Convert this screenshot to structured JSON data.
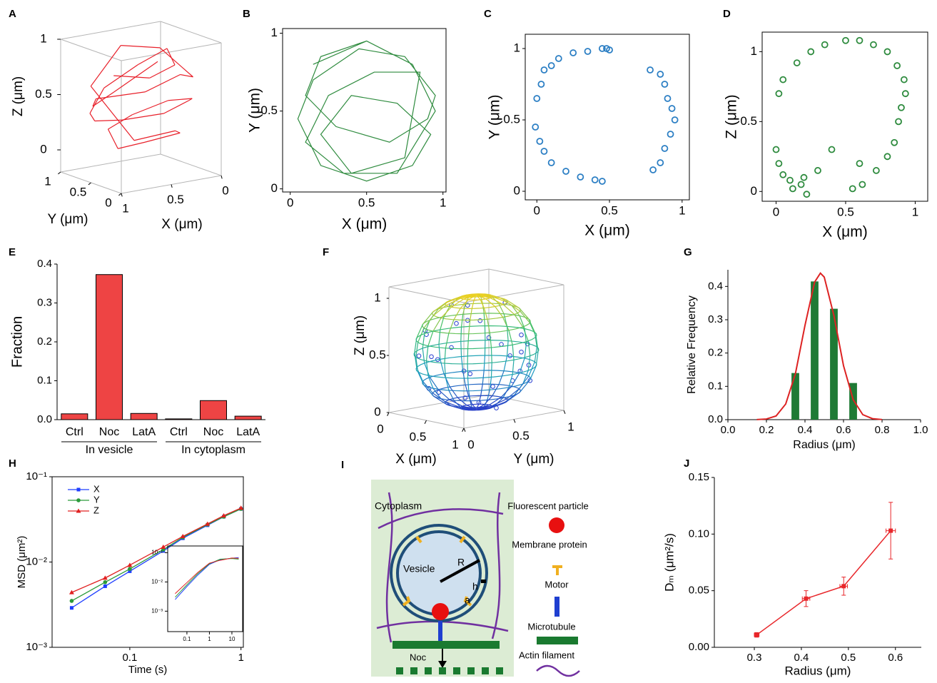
{
  "chart_data": [
    {
      "type": "line3d",
      "label": "A",
      "xlabel": "X (μm)",
      "ylabel": "Y (μm)",
      "zlabel": "Z (μm)",
      "color": "#e8202a",
      "xlim": [
        0,
        1
      ],
      "ylim": [
        0,
        1
      ],
      "zlim": [
        -0.2,
        1
      ],
      "xticks": [
        0,
        0.5,
        1
      ],
      "yticks": [
        0,
        0.5,
        1
      ],
      "zticks": [
        0,
        0.5,
        1
      ],
      "x": [
        0.5,
        0.2,
        0.1,
        0.3,
        0.65,
        0.9,
        0.95,
        0.75,
        0.45,
        0.15,
        0.05,
        0.2,
        0.5,
        0.8,
        0.92,
        0.7,
        0.4,
        0.2,
        0.4,
        0.75,
        0.85,
        0.55,
        0.25,
        0.1,
        0.35,
        0.7,
        0.95,
        0.8,
        0.5,
        0.15
      ],
      "y": [
        0.95,
        0.85,
        0.6,
        0.4,
        0.3,
        0.45,
        0.6,
        0.85,
        0.9,
        0.7,
        0.45,
        0.15,
        0.05,
        0.15,
        0.35,
        0.55,
        0.6,
        0.35,
        0.1,
        0.2,
        0.75,
        0.75,
        0.6,
        0.3,
        0.1,
        0.1,
        0.5,
        0.8,
        0.95,
        0.8
      ],
      "z": [
        0.6,
        0.55,
        0.7,
        0.92,
        0.85,
        0.65,
        0.4,
        0.25,
        0.2,
        0.25,
        0.4,
        0.5,
        0.55,
        0.45,
        0.3,
        0.05,
        0.05,
        0.15,
        0.25,
        0.2,
        0.6,
        0.92,
        0.88,
        0.65,
        0.75,
        0.65,
        0.55,
        0.4,
        0.45,
        0.7
      ]
    },
    {
      "type": "line",
      "label": "B",
      "xlabel": "X (μm)",
      "ylabel": "Y (μm)",
      "color": "#2e8b3e",
      "xlim": [
        -0.05,
        1.02
      ],
      "ylim": [
        -0.02,
        1.03
      ],
      "xticks": [
        0,
        0.5,
        1
      ],
      "yticks": [
        0,
        0.5,
        1
      ],
      "x": [
        0.5,
        0.2,
        0.1,
        0.3,
        0.65,
        0.9,
        0.95,
        0.75,
        0.45,
        0.15,
        0.05,
        0.2,
        0.5,
        0.8,
        0.92,
        0.7,
        0.4,
        0.2,
        0.4,
        0.75,
        0.85,
        0.55,
        0.25,
        0.1,
        0.35,
        0.7,
        0.95,
        0.8,
        0.5,
        0.15
      ],
      "values": [
        0.95,
        0.85,
        0.6,
        0.4,
        0.3,
        0.45,
        0.6,
        0.85,
        0.9,
        0.7,
        0.45,
        0.15,
        0.05,
        0.15,
        0.35,
        0.55,
        0.6,
        0.35,
        0.1,
        0.2,
        0.75,
        0.75,
        0.6,
        0.3,
        0.1,
        0.1,
        0.5,
        0.8,
        0.95,
        0.8
      ]
    },
    {
      "type": "scatter",
      "label": "C",
      "xlabel": "X (μm)",
      "ylabel": "Y (μm)",
      "color": "#2c7fc4",
      "xlim": [
        -0.08,
        1.05
      ],
      "ylim": [
        -0.06,
        1.1
      ],
      "xticks": [
        0,
        0.5,
        1
      ],
      "yticks": [
        0,
        0.5,
        1
      ],
      "x": [
        0.05,
        0.1,
        0.15,
        0.25,
        0.35,
        0.45,
        0.48,
        0.5,
        0.0,
        0.03,
        -0.01,
        0.02,
        0.05,
        0.1,
        0.2,
        0.3,
        0.4,
        0.45,
        0.78,
        0.85,
        0.88,
        0.9,
        0.93,
        0.95,
        0.92,
        0.88,
        0.85,
        0.8
      ],
      "values": [
        0.85,
        0.88,
        0.93,
        0.97,
        0.98,
        1.0,
        1.0,
        0.99,
        0.65,
        0.75,
        0.45,
        0.35,
        0.28,
        0.2,
        0.14,
        0.1,
        0.08,
        0.07,
        0.85,
        0.82,
        0.75,
        0.65,
        0.58,
        0.5,
        0.4,
        0.3,
        0.2,
        0.15
      ]
    },
    {
      "type": "scatter",
      "label": "D",
      "xlabel": "X (μm)",
      "ylabel": "Z (μm)",
      "color": "#2e8b3e",
      "xlim": [
        -0.1,
        1.09
      ],
      "ylim": [
        -0.07,
        1.14
      ],
      "xticks": [
        0,
        0.5,
        1
      ],
      "yticks": [
        0,
        0.5,
        1
      ],
      "x": [
        0.02,
        0.05,
        0.15,
        0.25,
        0.35,
        0.5,
        0.6,
        0.7,
        0.8,
        0.87,
        0.92,
        0.93,
        0.9,
        0.88,
        0.85,
        0.8,
        0.72,
        0.62,
        0.55,
        0.6,
        0.0,
        0.02,
        0.05,
        0.1,
        0.12,
        0.18,
        0.2,
        0.22,
        0.3,
        0.4
      ],
      "values": [
        0.7,
        0.8,
        0.92,
        1.0,
        1.05,
        1.08,
        1.08,
        1.05,
        1.0,
        0.9,
        0.8,
        0.7,
        0.6,
        0.5,
        0.35,
        0.25,
        0.15,
        0.05,
        0.02,
        0.2,
        0.3,
        0.2,
        0.12,
        0.08,
        0.02,
        0.05,
        0.1,
        -0.02,
        0.15,
        0.3
      ]
    },
    {
      "type": "bar",
      "label": "E",
      "ylabel": "Fraction",
      "color": "#ee4444",
      "categories": [
        "Ctrl",
        "Noc",
        "LatA",
        "Ctrl",
        "Noc",
        "LatA"
      ],
      "groups": [
        "In vesicle",
        "In cytoplasm"
      ],
      "values": [
        0.015,
        0.373,
        0.016,
        0.002,
        0.049,
        0.009
      ],
      "ylim": [
        0,
        0.4
      ],
      "yticks": [
        {
          "value": 0,
          "label": "0.0"
        },
        0.1,
        0.2,
        0.3,
        0.4
      ]
    },
    {
      "type": "scatter3d",
      "label": "F",
      "xlabel": "X (μm)",
      "ylabel": "Y (μm)",
      "zlabel": "Z (μm)",
      "color": "#2a3fd0",
      "xlim": [
        0,
        1
      ],
      "ylim": [
        0,
        1
      ],
      "zlim": [
        0,
        1.1
      ],
      "xticks": [
        0,
        0.5,
        1
      ],
      "yticks": [
        0,
        0.5,
        1
      ],
      "zticks": [
        0,
        0.5,
        1
      ],
      "sphere": {
        "center": [
          0.5,
          0.5,
          0.52
        ],
        "radius": 0.5
      },
      "colormap": [
        "#2b3cc8",
        "#1fa0c0",
        "#3cc070",
        "#f0d020"
      ],
      "x": [
        0.5,
        0.2,
        0.1,
        0.3,
        0.65,
        0.9,
        0.95,
        0.75,
        0.45,
        0.15,
        0.05,
        0.2,
        0.5,
        0.8,
        0.92,
        0.7,
        0.4,
        0.2,
        0.4,
        0.75,
        0.85,
        0.55,
        0.25,
        0.1,
        0.35,
        0.7,
        0.95,
        0.8,
        0.5,
        0.15
      ],
      "y": [
        0.95,
        0.85,
        0.6,
        0.4,
        0.3,
        0.45,
        0.6,
        0.85,
        0.9,
        0.7,
        0.45,
        0.15,
        0.05,
        0.15,
        0.35,
        0.55,
        0.6,
        0.35,
        0.1,
        0.2,
        0.75,
        0.75,
        0.6,
        0.3,
        0.1,
        0.1,
        0.5,
        0.8,
        0.95,
        0.8
      ],
      "z": [
        0.6,
        0.55,
        0.7,
        0.92,
        0.85,
        0.65,
        0.4,
        0.25,
        0.2,
        0.25,
        0.4,
        0.5,
        0.55,
        0.45,
        0.3,
        0.05,
        0.05,
        0.15,
        0.25,
        0.2,
        0.6,
        0.92,
        0.88,
        0.65,
        0.75,
        0.65,
        0.55,
        0.4,
        0.45,
        0.7
      ]
    },
    {
      "type": "histogram",
      "label": "G",
      "xlabel": "Radius (μm)",
      "ylabel": "Relative Frequency",
      "color": "#1f7a35",
      "fit_color": "#dd2222",
      "bins": [
        0.3,
        0.4,
        0.5,
        0.6,
        0.7
      ],
      "values": [
        0.14,
        0.415,
        0.333,
        0.11
      ],
      "fit_x": [
        0.15,
        0.2,
        0.25,
        0.3,
        0.35,
        0.4,
        0.45,
        0.48,
        0.5,
        0.55,
        0.6,
        0.65,
        0.7,
        0.75,
        0.8
      ],
      "fit_y": [
        0.0002,
        0.002,
        0.011,
        0.047,
        0.137,
        0.283,
        0.413,
        0.44,
        0.428,
        0.313,
        0.162,
        0.06,
        0.015,
        0.003,
        0.0004
      ],
      "xlim": [
        0,
        1
      ],
      "ylim": [
        0,
        0.45
      ],
      "xticks": [
        {
          "value": 0,
          "label": "0.0"
        },
        0.2,
        0.4,
        0.6,
        0.8,
        {
          "value": 1,
          "label": "1.0"
        }
      ],
      "yticks": [
        {
          "value": 0,
          "label": "0.0"
        },
        0.1,
        0.2,
        0.3,
        0.4
      ]
    },
    {
      "type": "line",
      "label": "H",
      "log": true,
      "xlabel": "Time (s)",
      "ylabel": "MSD (μm²)",
      "xlim": [
        0.02,
        1.05
      ],
      "ylim": [
        0.001,
        0.1
      ],
      "xticks": [
        0.1,
        1
      ],
      "yticks": [
        {
          "value": 0.001,
          "label": "10⁻³"
        },
        {
          "value": 0.01,
          "label": "10⁻²"
        },
        {
          "value": 0.1,
          "label": "10⁻¹"
        }
      ],
      "x": [
        0.03,
        0.06,
        0.1,
        0.2,
        0.3,
        0.5,
        0.7,
        1.0
      ],
      "series": [
        {
          "name": "X",
          "color": "#1f3fff",
          "marker": "square",
          "values": [
            0.0029,
            0.0052,
            0.0078,
            0.0135,
            0.019,
            0.027,
            0.034,
            0.042
          ]
        },
        {
          "name": "Y",
          "color": "#2a9a3a",
          "marker": "circle",
          "values": [
            0.0035,
            0.0058,
            0.0083,
            0.014,
            0.0195,
            0.0275,
            0.034,
            0.042
          ]
        },
        {
          "name": "Z",
          "color": "#e02020",
          "marker": "triangle",
          "values": [
            0.0044,
            0.0065,
            0.0092,
            0.015,
            0.02,
            0.028,
            0.035,
            0.043
          ]
        }
      ],
      "inset": {
        "log": true,
        "xlim": [
          0.014,
          30
        ],
        "ylim": [
          0.0002,
          0.17
        ],
        "xticks": [
          0.1,
          1,
          10
        ],
        "yticks": [
          {
            "value": 0.001,
            "label": "10⁻³"
          },
          {
            "value": 0.01,
            "label": "10⁻²"
          },
          {
            "value": 0.1,
            "label": "10⁻¹"
          }
        ],
        "x": [
          0.03,
          0.1,
          0.3,
          1,
          3,
          10,
          20
        ],
        "series": [
          {
            "color": "#1f3fff",
            "values": [
              0.0025,
              0.007,
              0.017,
              0.04,
              0.058,
              0.065,
              0.068
            ]
          },
          {
            "color": "#2a9a3a",
            "values": [
              0.003,
              0.008,
              0.019,
              0.042,
              0.06,
              0.063,
              0.06
            ]
          },
          {
            "color": "#e02020",
            "values": [
              0.004,
              0.0095,
              0.021,
              0.044,
              0.055,
              0.066,
              0.064
            ]
          }
        ]
      }
    },
    {
      "type": "errorline",
      "label": "J",
      "xlabel": "Radius (μm)",
      "ylabel": "Dₘ (μm²/s)",
      "color": "#e8262a",
      "x": [
        0.305,
        0.41,
        0.49,
        0.59
      ],
      "xerr": [
        0.005,
        0.008,
        0.008,
        0.01
      ],
      "values": [
        0.011,
        0.043,
        0.054,
        0.103
      ],
      "yerr": [
        0.002,
        0.007,
        0.008,
        0.025
      ],
      "xlim": [
        0.215,
        0.655
      ],
      "ylim": [
        0,
        0.15
      ],
      "xticks": [
        0.3,
        0.4,
        0.5,
        0.6
      ],
      "yticks": [
        {
          "value": 0,
          "label": "0.00"
        },
        {
          "value": 0.05,
          "label": "0.05"
        },
        {
          "value": 0.1,
          "label": "0.10"
        },
        {
          "value": 0.15,
          "label": "0.15"
        }
      ]
    }
  ],
  "diagram": {
    "label": "I",
    "cytoplasm": "Cytoplasm",
    "vesicle": "Vesicle",
    "r": "R",
    "h": "h",
    "a": "a",
    "noc": "Noc",
    "legend": [
      "Fluorescent particle",
      "Membrane protein",
      "Motor",
      "Microtubule",
      "Actin filament"
    ]
  }
}
